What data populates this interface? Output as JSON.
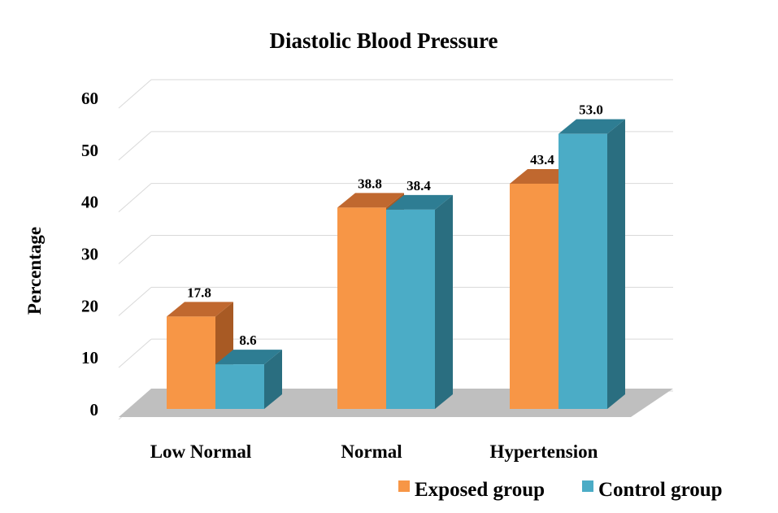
{
  "chart_data": {
    "type": "bar",
    "title": "Diastolic Blood Pressure",
    "ylabel": "Percentage",
    "xlabel": "",
    "ylim": [
      0,
      60
    ],
    "yticks": [
      0,
      10,
      20,
      30,
      40,
      50,
      60
    ],
    "categories": [
      "Low Normal",
      "Normal",
      "Hypertension"
    ],
    "series": [
      {
        "name": "Exposed group",
        "values": [
          17.8,
          38.8,
          43.4
        ],
        "labels": [
          "17.8",
          "38.8",
          "43.4"
        ],
        "color": "#F79646",
        "top_color": "#C0682F",
        "side_color": "#A85A24"
      },
      {
        "name": "Control group",
        "values": [
          8.6,
          38.4,
          53.0
        ],
        "labels": [
          "8.6",
          "38.4",
          "53.0"
        ],
        "color": "#4BACC6",
        "top_color": "#2E7D93",
        "side_color": "#2A6E80"
      }
    ],
    "grid": true,
    "legend_position": "bottom-right",
    "style": "3d-column"
  }
}
